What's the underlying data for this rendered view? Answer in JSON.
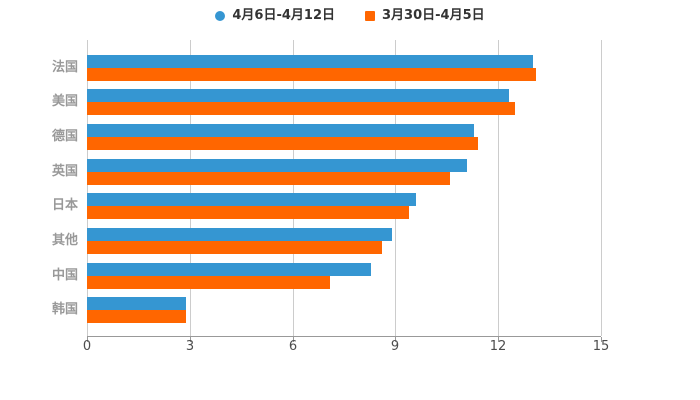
{
  "legend": {
    "items": [
      {
        "label": "4月6日-4月12日",
        "color": "#3596D2",
        "marker": "circle"
      },
      {
        "label": "3月30日-4月5日",
        "color": "#FF6600",
        "marker": "square"
      }
    ]
  },
  "chart_data": {
    "type": "bar",
    "orientation": "horizontal",
    "title": "",
    "xlabel": "",
    "ylabel": "",
    "categories": [
      "法国",
      "美国",
      "德国",
      "英国",
      "日本",
      "其他",
      "中国",
      "韩国"
    ],
    "series": [
      {
        "name": "4月6日-4月12日",
        "color": "#3596D2",
        "values": [
          13.0,
          12.3,
          11.3,
          11.1,
          9.6,
          8.9,
          8.3,
          2.9
        ]
      },
      {
        "name": "3月30日-4月5日",
        "color": "#FF6600",
        "values": [
          13.1,
          12.5,
          11.4,
          10.6,
          9.4,
          8.6,
          7.1,
          2.9
        ]
      }
    ],
    "x_ticks": [
      0,
      3,
      6,
      9,
      12,
      15
    ],
    "xlim": [
      0,
      15
    ],
    "grid": true,
    "legend_position": "top"
  },
  "colors": {
    "background": "#FFFFFF",
    "grid_line": "#CCCCCC",
    "axis_line": "#999999",
    "category_label": "#999999",
    "tick_label": "#4D4D4D",
    "legend_text": "#333333"
  }
}
